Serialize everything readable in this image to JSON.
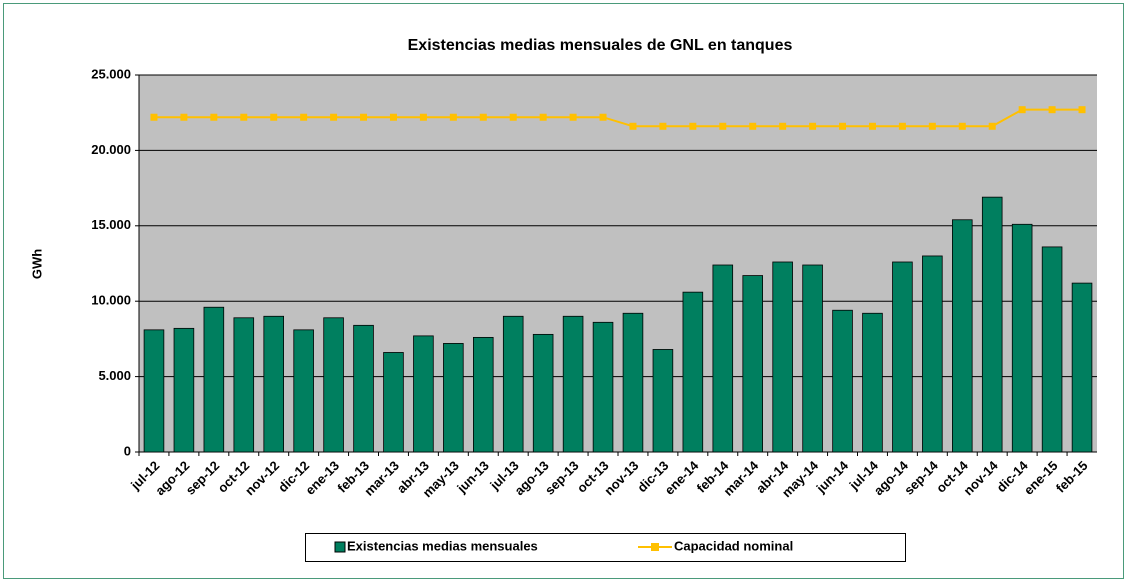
{
  "chart_data": {
    "type": "bar_line",
    "title": "Existencias medias mensuales de GNL en tanques",
    "y_label": "GWh",
    "categories": [
      "jul-12",
      "ago-12",
      "sep-12",
      "oct-12",
      "nov-12",
      "dic-12",
      "ene-13",
      "feb-13",
      "mar-13",
      "abr-13",
      "may-13",
      "jun-13",
      "jul-13",
      "ago-13",
      "sep-13",
      "oct-13",
      "nov-13",
      "dic-13",
      "ene-14",
      "feb-14",
      "mar-14",
      "abr-14",
      "may-14",
      "jun-14",
      "jul-14",
      "ago-14",
      "sep-14",
      "oct-14",
      "nov-14",
      "dic-14",
      "ene-15",
      "feb-15"
    ],
    "series": [
      {
        "name": "Existencias medias mensuales",
        "type": "bar",
        "color": "#007f5f",
        "values": [
          8100,
          8200,
          9600,
          8900,
          9000,
          8100,
          8900,
          8400,
          6600,
          7700,
          7200,
          7600,
          9000,
          7800,
          9000,
          8600,
          9200,
          6800,
          10600,
          12400,
          11700,
          12600,
          12400,
          9400,
          9200,
          12600,
          13000,
          15400,
          16900,
          15100,
          13600,
          11200
        ]
      },
      {
        "name": "Capacidad nominal",
        "type": "line",
        "color": "#ffc000",
        "values": [
          22200,
          22200,
          22200,
          22200,
          22200,
          22200,
          22200,
          22200,
          22200,
          22200,
          22200,
          22200,
          22200,
          22200,
          22200,
          22200,
          21600,
          21600,
          21600,
          21600,
          21600,
          21600,
          21600,
          21600,
          21600,
          21600,
          21600,
          21600,
          21600,
          22700,
          22700,
          22700
        ]
      }
    ],
    "ylim": [
      0,
      25000
    ],
    "yticks": [
      0,
      {
        "value": 5000,
        "label": "5.000"
      },
      {
        "value": 10000,
        "label": "10.000"
      },
      {
        "value": 15000,
        "label": "15.000"
      },
      {
        "value": 20000,
        "label": "20.000"
      },
      {
        "value": 25000,
        "label": "25.000"
      }
    ],
    "grid": true,
    "legend": "bottom"
  }
}
